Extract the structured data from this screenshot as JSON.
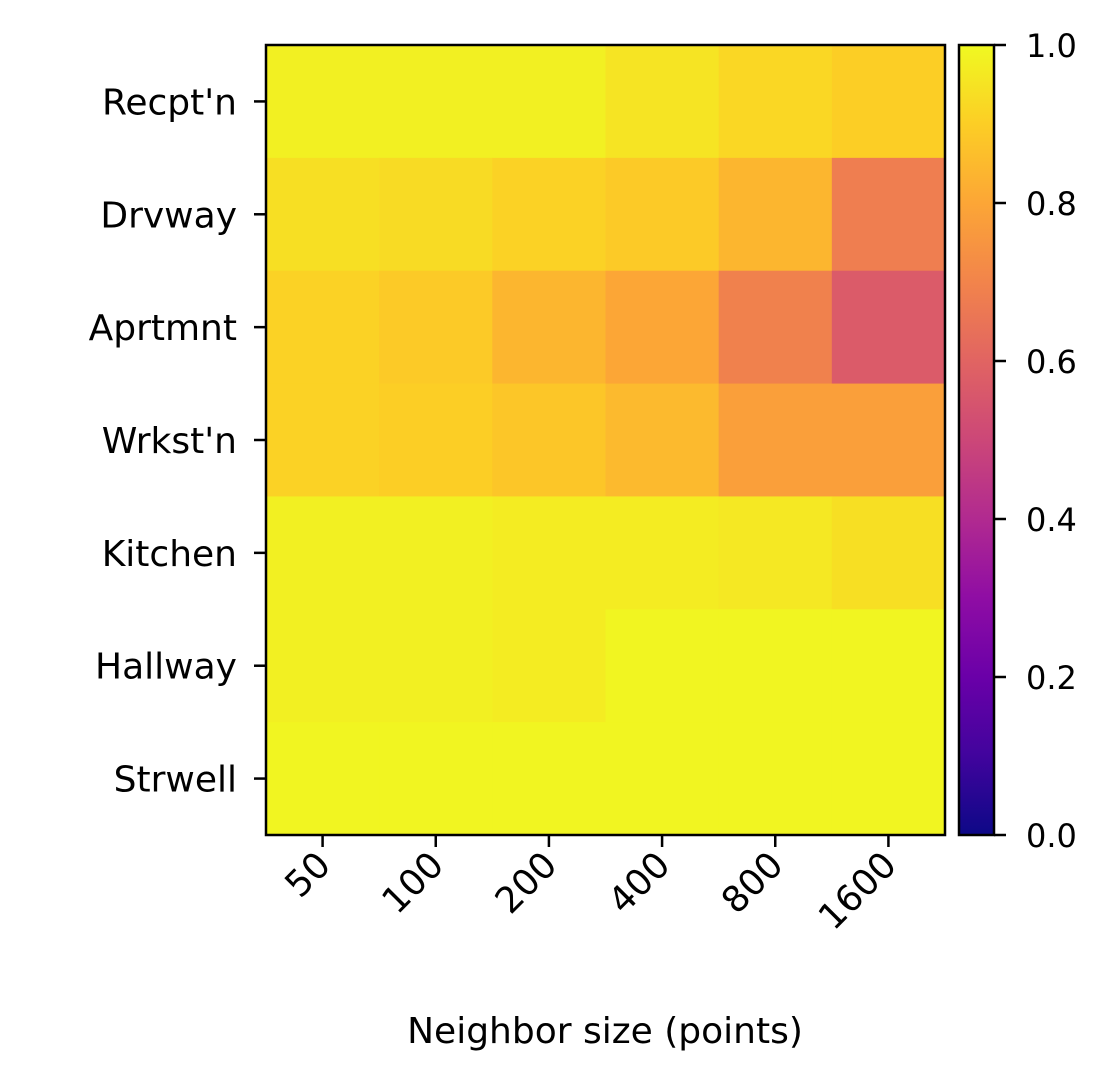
{
  "chart_data": {
    "type": "heatmap",
    "xlabel": "Neighbor size (points)",
    "ylabel": "",
    "x_categories": [
      "50",
      "100",
      "200",
      "400",
      "800",
      "1600"
    ],
    "y_categories": [
      "Recpt'n",
      "Drvway",
      "Aprtmnt",
      "Wrkst'n",
      "Kitchen",
      "Hallway",
      "Strwell"
    ],
    "values": [
      [
        0.98,
        0.98,
        0.98,
        0.95,
        0.92,
        0.9
      ],
      [
        0.94,
        0.93,
        0.91,
        0.89,
        0.84,
        0.68
      ],
      [
        0.91,
        0.89,
        0.84,
        0.8,
        0.69,
        0.57
      ],
      [
        0.91,
        0.9,
        0.88,
        0.85,
        0.78,
        0.78
      ],
      [
        0.98,
        0.98,
        0.97,
        0.97,
        0.96,
        0.94
      ],
      [
        0.98,
        0.98,
        0.97,
        0.99,
        0.99,
        0.99
      ],
      [
        0.99,
        0.99,
        0.99,
        0.99,
        0.99,
        0.99
      ]
    ],
    "colormap": "plasma",
    "colorbar": {
      "range": [
        0.0,
        1.0
      ],
      "ticks": [
        "0.0",
        "0.2",
        "0.4",
        "0.6",
        "0.8",
        "1.0"
      ]
    },
    "grid": false,
    "x_tick_rotation": "45 degrees"
  }
}
